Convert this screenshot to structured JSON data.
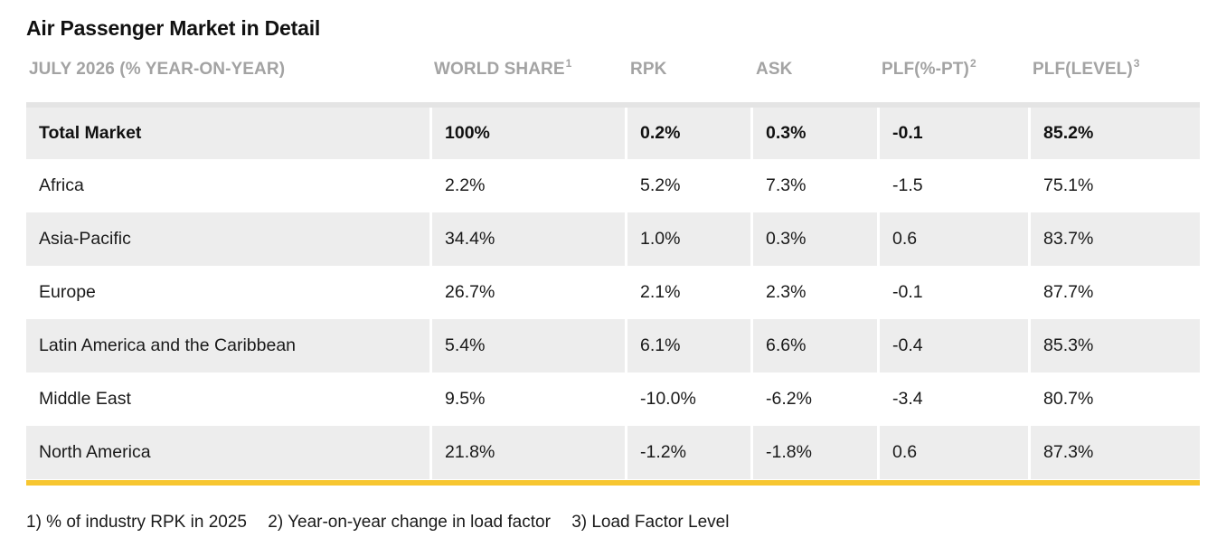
{
  "title": "Air Passenger Market in Detail",
  "header": {
    "col0": "JULY 2026 (% YEAR-ON-YEAR)",
    "col1": "WORLD SHARE",
    "col1_sup": "1",
    "col2": "RPK",
    "col3": "ASK",
    "col4": "PLF(%-PT)",
    "col4_sup": "2",
    "col5": "PLF(LEVEL)",
    "col5_sup": "3"
  },
  "rows": [
    {
      "region": "Total Market",
      "world_share": "100%",
      "rpk": "0.2%",
      "ask": "0.3%",
      "plf_pt": "-0.1",
      "plf_level": "85.2%"
    },
    {
      "region": "Africa",
      "world_share": "2.2%",
      "rpk": "5.2%",
      "ask": "7.3%",
      "plf_pt": "-1.5",
      "plf_level": "75.1%"
    },
    {
      "region": "Asia-Pacific",
      "world_share": "34.4%",
      "rpk": "1.0%",
      "ask": "0.3%",
      "plf_pt": "0.6",
      "plf_level": "83.7%"
    },
    {
      "region": "Europe",
      "world_share": "26.7%",
      "rpk": "2.1%",
      "ask": "2.3%",
      "plf_pt": "-0.1",
      "plf_level": "87.7%"
    },
    {
      "region": "Latin America and the Caribbean",
      "world_share": "5.4%",
      "rpk": "6.1%",
      "ask": "6.6%",
      "plf_pt": "-0.4",
      "plf_level": "85.3%"
    },
    {
      "region": "Middle East",
      "world_share": "9.5%",
      "rpk": "-10.0%",
      "ask": "-6.2%",
      "plf_pt": "-3.4",
      "plf_level": "80.7%"
    },
    {
      "region": "North America",
      "world_share": "21.8%",
      "rpk": "-1.2%",
      "ask": "-1.8%",
      "plf_pt": "0.6",
      "plf_level": "87.3%"
    }
  ],
  "footnotes": [
    "1) % of industry RPK in 2025",
    "2) Year-on-year change in load factor",
    "3) Load Factor Level"
  ],
  "colors": {
    "accent_rule": "#f7c630",
    "header_text": "#a3a3a3",
    "shaded_row": "#ededed"
  }
}
